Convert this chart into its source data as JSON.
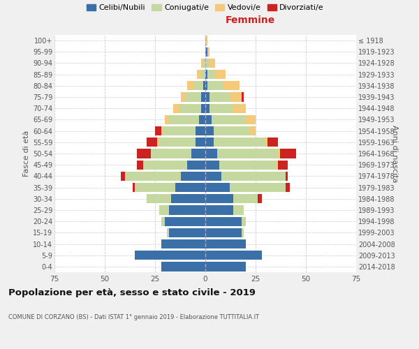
{
  "age_groups": [
    "0-4",
    "5-9",
    "10-14",
    "15-19",
    "20-24",
    "25-29",
    "30-34",
    "35-39",
    "40-44",
    "45-49",
    "50-54",
    "55-59",
    "60-64",
    "65-69",
    "70-74",
    "75-79",
    "80-84",
    "85-89",
    "90-94",
    "95-99",
    "100+"
  ],
  "birth_years": [
    "2014-2018",
    "2009-2013",
    "2004-2008",
    "1999-2003",
    "1994-1998",
    "1989-1993",
    "1984-1988",
    "1979-1983",
    "1974-1978",
    "1969-1973",
    "1964-1968",
    "1959-1963",
    "1954-1958",
    "1949-1953",
    "1944-1948",
    "1939-1943",
    "1934-1938",
    "1929-1933",
    "1924-1928",
    "1919-1923",
    "≤ 1918"
  ],
  "male": {
    "celibe": [
      22,
      35,
      22,
      18,
      20,
      18,
      17,
      15,
      12,
      9,
      7,
      5,
      5,
      3,
      2,
      2,
      1,
      0,
      0,
      0,
      0
    ],
    "coniugato": [
      0,
      0,
      0,
      1,
      2,
      5,
      12,
      20,
      28,
      22,
      20,
      18,
      16,
      15,
      11,
      8,
      5,
      2,
      1,
      0,
      0
    ],
    "vedovo": [
      0,
      0,
      0,
      0,
      0,
      0,
      0,
      0,
      0,
      0,
      0,
      1,
      1,
      2,
      3,
      2,
      3,
      2,
      1,
      0,
      0
    ],
    "divorziato": [
      0,
      0,
      0,
      0,
      0,
      0,
      0,
      1,
      2,
      3,
      7,
      5,
      3,
      0,
      0,
      0,
      0,
      0,
      0,
      0,
      0
    ]
  },
  "female": {
    "nubile": [
      20,
      28,
      20,
      18,
      18,
      14,
      14,
      12,
      8,
      7,
      6,
      4,
      4,
      3,
      2,
      2,
      1,
      1,
      0,
      1,
      0
    ],
    "coniugata": [
      0,
      0,
      0,
      1,
      2,
      5,
      12,
      28,
      32,
      28,
      30,
      26,
      18,
      17,
      12,
      10,
      8,
      4,
      2,
      0,
      0
    ],
    "vedova": [
      0,
      0,
      0,
      0,
      0,
      0,
      0,
      0,
      0,
      1,
      1,
      1,
      3,
      5,
      6,
      6,
      8,
      5,
      3,
      1,
      1
    ],
    "divorziata": [
      0,
      0,
      0,
      0,
      0,
      0,
      2,
      2,
      1,
      5,
      8,
      5,
      0,
      0,
      0,
      1,
      0,
      0,
      0,
      0,
      0
    ]
  },
  "colors": {
    "celibe": "#3a6fa8",
    "coniugato": "#c5d8a0",
    "vedovo": "#f5c97a",
    "divorziato": "#cc2222"
  },
  "xlim": 75,
  "title": "Popolazione per età, sesso e stato civile - 2019",
  "subtitle": "COMUNE DI CORZANO (BS) - Dati ISTAT 1° gennaio 2019 - Elaborazione TUTTITALIA.IT",
  "ylabel_left": "Fasce di età",
  "ylabel_right": "Anni di nascita",
  "xlabel_female": "Femmine",
  "legend_labels": [
    "Celibi/Nubili",
    "Coniugati/e",
    "Vedovi/e",
    "Divorziati/e"
  ],
  "bg_color": "#f0f0f0",
  "plot_bg": "#ffffff"
}
